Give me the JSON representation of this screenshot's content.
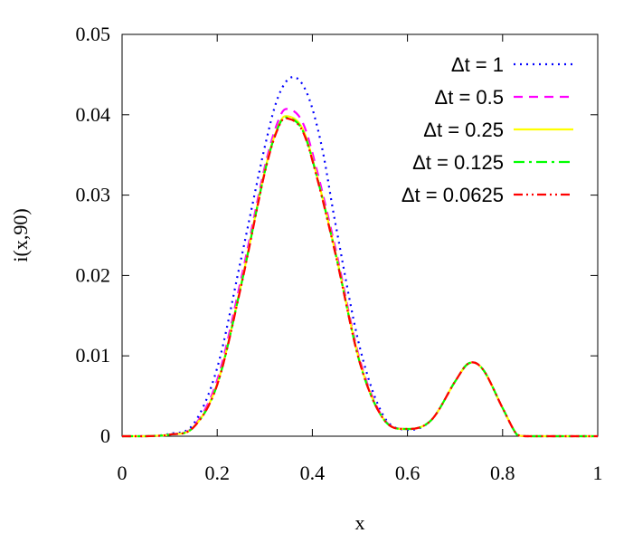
{
  "chart_data": {
    "type": "line",
    "title": "",
    "xlabel": "x",
    "ylabel": "i(x,90)",
    "xlim": [
      0,
      1
    ],
    "ylim": [
      0,
      0.05
    ],
    "xticks": [
      "0",
      "0.2",
      "0.4",
      "0.6",
      "0.8",
      "1"
    ],
    "yticks": [
      "0",
      "0.01",
      "0.02",
      "0.03",
      "0.04",
      "0.05"
    ],
    "grid": false,
    "legend_position": "top-right",
    "series": [
      {
        "name": "Δt = 1",
        "color": "#0000ff",
        "dash": "dotted",
        "x": [
          0,
          0.05,
          0.1,
          0.15,
          0.2,
          0.25,
          0.3,
          0.33,
          0.36,
          0.39,
          0.42,
          0.45,
          0.5,
          0.55,
          0.6,
          0.65,
          0.7,
          0.73,
          0.76,
          0.8,
          0.83,
          0.85,
          0.9,
          1
        ],
        "y": [
          0,
          0,
          0.0003,
          0.0015,
          0.0085,
          0.022,
          0.036,
          0.0425,
          0.0447,
          0.0425,
          0.036,
          0.026,
          0.011,
          0.0025,
          0.0008,
          0.002,
          0.0068,
          0.0091,
          0.0082,
          0.0035,
          0.0002,
          0,
          0,
          0
        ]
      },
      {
        "name": "Δt = 0.5",
        "color": "#ff00ff",
        "dash": "dashed",
        "x": [
          0,
          0.05,
          0.1,
          0.15,
          0.2,
          0.25,
          0.3,
          0.33,
          0.35,
          0.38,
          0.41,
          0.45,
          0.5,
          0.55,
          0.6,
          0.65,
          0.7,
          0.73,
          0.76,
          0.8,
          0.83,
          0.85,
          0.9,
          1
        ],
        "y": [
          0,
          0,
          0.0002,
          0.0012,
          0.007,
          0.0195,
          0.0335,
          0.0395,
          0.0407,
          0.039,
          0.033,
          0.023,
          0.0095,
          0.0022,
          0.0009,
          0.002,
          0.0068,
          0.0091,
          0.0082,
          0.0035,
          0.0002,
          0,
          0,
          0
        ]
      },
      {
        "name": "Δt = 0.25",
        "color": "#ffff00",
        "dash": "solid",
        "x": [
          0,
          0.05,
          0.1,
          0.15,
          0.2,
          0.25,
          0.3,
          0.33,
          0.35,
          0.38,
          0.41,
          0.45,
          0.5,
          0.55,
          0.6,
          0.65,
          0.7,
          0.73,
          0.76,
          0.8,
          0.83,
          0.85,
          0.9,
          1
        ],
        "y": [
          0,
          0,
          0.0002,
          0.0011,
          0.0065,
          0.0188,
          0.033,
          0.0388,
          0.0398,
          0.0382,
          0.0323,
          0.0225,
          0.0092,
          0.0021,
          0.0009,
          0.002,
          0.0068,
          0.0091,
          0.0082,
          0.0035,
          0.0002,
          0,
          0,
          0
        ]
      },
      {
        "name": "Δt = 0.125",
        "color": "#00ff00",
        "dash": "dashdot",
        "x": [
          0,
          0.05,
          0.1,
          0.15,
          0.2,
          0.25,
          0.3,
          0.33,
          0.35,
          0.38,
          0.41,
          0.45,
          0.5,
          0.55,
          0.6,
          0.65,
          0.7,
          0.73,
          0.76,
          0.8,
          0.83,
          0.85,
          0.9,
          1
        ],
        "y": [
          0,
          0,
          0.0002,
          0.0011,
          0.0064,
          0.0187,
          0.0329,
          0.0387,
          0.0396,
          0.038,
          0.0322,
          0.0224,
          0.0091,
          0.0021,
          0.0009,
          0.002,
          0.0068,
          0.0091,
          0.0082,
          0.0035,
          0.0002,
          0,
          0,
          0
        ]
      },
      {
        "name": "Δt = 0.0625",
        "color": "#ff0000",
        "dash": "dashdotdot",
        "x": [
          0,
          0.05,
          0.1,
          0.15,
          0.2,
          0.25,
          0.3,
          0.33,
          0.35,
          0.38,
          0.41,
          0.45,
          0.5,
          0.55,
          0.6,
          0.65,
          0.7,
          0.73,
          0.76,
          0.8,
          0.83,
          0.85,
          0.9,
          1
        ],
        "y": [
          0,
          0,
          0.0002,
          0.0011,
          0.0064,
          0.0186,
          0.0328,
          0.0386,
          0.0395,
          0.0379,
          0.0321,
          0.0223,
          0.0091,
          0.0021,
          0.0009,
          0.002,
          0.0068,
          0.0091,
          0.0082,
          0.0035,
          0.0002,
          0,
          0,
          0
        ]
      }
    ]
  }
}
